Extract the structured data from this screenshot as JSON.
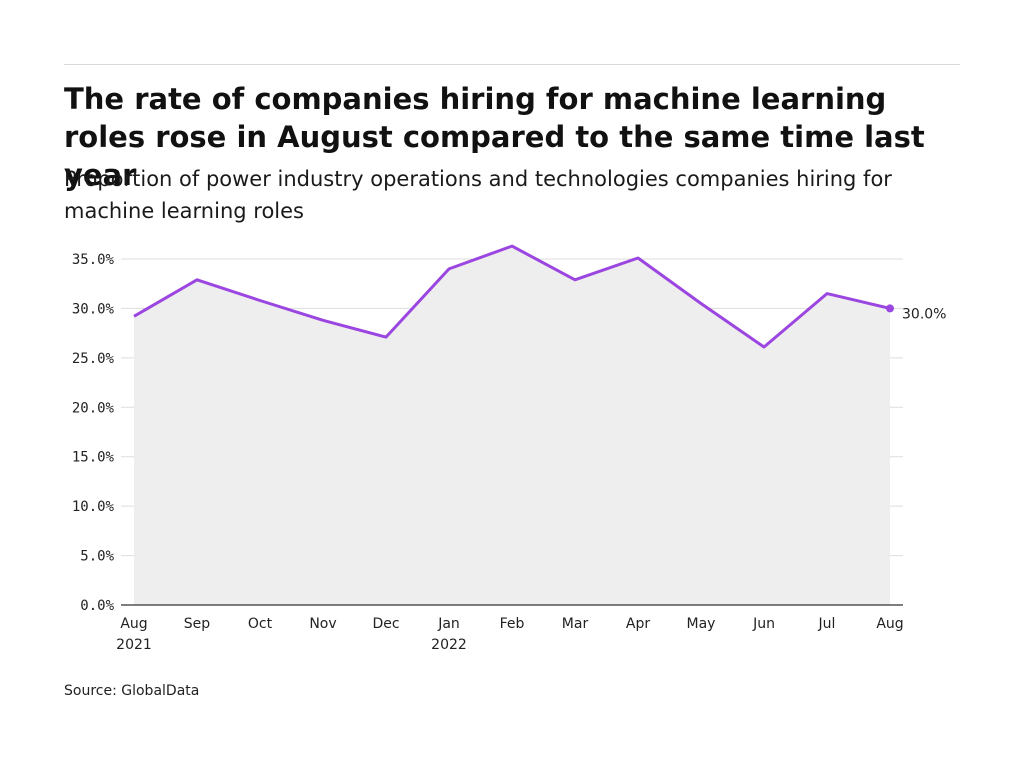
{
  "title": "The rate of companies hiring for machine learning roles rose in August compared to the same time last year",
  "subtitle": "Proportion of power industry operations and technologies companies hiring for machine learning roles",
  "source": "Source: GlobalData",
  "colors": {
    "line": "#9b46e0",
    "area": "#eeeeee",
    "grid": "#dddddd",
    "axis": "#333333"
  },
  "chart_data": {
    "type": "area",
    "x": [
      "Aug 2021",
      "Sep 2021",
      "Oct 2021",
      "Nov 2021",
      "Dec 2021",
      "Jan 2022",
      "Feb 2022",
      "Mar 2022",
      "Apr 2022",
      "May 2022",
      "Jun 2022",
      "Jul 2022",
      "Aug 2022"
    ],
    "x_tick_labels": [
      [
        "Aug",
        "2021"
      ],
      [
        "Sep"
      ],
      [
        "Oct"
      ],
      [
        "Nov"
      ],
      [
        "Dec"
      ],
      [
        "Jan",
        "2022"
      ],
      [
        "Feb"
      ],
      [
        "Mar"
      ],
      [
        "Apr"
      ],
      [
        "May"
      ],
      [
        "Jun"
      ],
      [
        "Jul"
      ],
      [
        "Aug"
      ]
    ],
    "series": [
      {
        "values": [
          29.2,
          32.9,
          30.8,
          28.8,
          27.1,
          34.0,
          36.3,
          32.9,
          35.1,
          30.5,
          26.1,
          31.5,
          30.0
        ]
      }
    ],
    "ylim": [
      0,
      35
    ],
    "yticks": [
      0,
      5,
      10,
      15,
      20,
      25,
      30,
      35
    ],
    "ytick_labels": [
      "0.0%",
      "5.0%",
      "10.0%",
      "15.0%",
      "20.0%",
      "25.0%",
      "30.0%",
      "35.0%"
    ],
    "end_label": "30.0%",
    "grid": true,
    "legend": "none"
  }
}
